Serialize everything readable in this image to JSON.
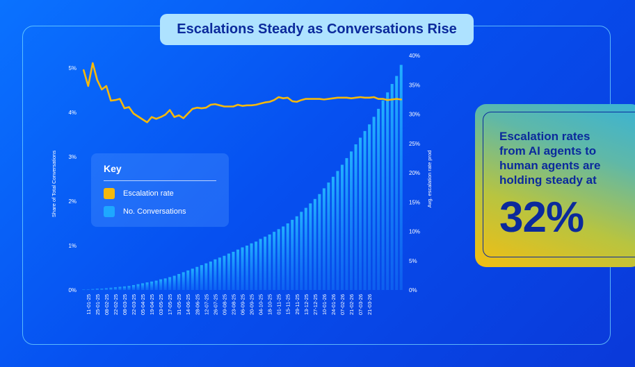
{
  "title": "Escalations Steady as Conversations Rise",
  "legend": {
    "title": "Key",
    "items": [
      {
        "label": "Escalation rate",
        "color": "#f5b90c"
      },
      {
        "label": "No. Conversations",
        "color": "#1ea8ff"
      }
    ]
  },
  "callout": {
    "text": "Escalation rates from AI agents to human agents are holding steady at",
    "value": "32%"
  },
  "chart_data": {
    "type": "bar",
    "x_tick_labels": [
      "11-01-25",
      "25-01-25",
      "08-02-25",
      "22-02-25",
      "08-03-25",
      "22-03-25",
      "05-04-25",
      "19-04-25",
      "03-05-25",
      "17-05-25",
      "31-05-25",
      "14-06-25",
      "28-06-25",
      "12-07-25",
      "26-07-25",
      "09-08-25",
      "23-08-25",
      "06-09-25",
      "20-09-25",
      "04-10-25",
      "18-10-25",
      "01-11-25",
      "15-11-25",
      "29-11-25",
      "13-12-25",
      "27-12-25",
      "10-01-26",
      "24-01-26",
      "07-02-26",
      "21-02-26",
      "07-03-26",
      "21-03-26"
    ],
    "ylabel": "Share of Total Conversations",
    "y_ticks": [
      "0%",
      "1%",
      "2%",
      "3%",
      "4%",
      "5%"
    ],
    "ylim": [
      0,
      5
    ],
    "y2label": "Avg. escalation rate prod",
    "y2_ticks": [
      "0%",
      "5%",
      "10%",
      "15%",
      "20%",
      "25%",
      "30%",
      "35%",
      "40%"
    ],
    "y2lim": [
      0,
      40
    ],
    "series": [
      {
        "name": "No. Conversations",
        "axis": "left",
        "type": "bar",
        "values": [
          0.01,
          0.01,
          0.02,
          0.03,
          0.03,
          0.04,
          0.05,
          0.06,
          0.07,
          0.08,
          0.09,
          0.11,
          0.13,
          0.15,
          0.17,
          0.19,
          0.21,
          0.24,
          0.26,
          0.29,
          0.32,
          0.36,
          0.4,
          0.44,
          0.48,
          0.52,
          0.56,
          0.6,
          0.64,
          0.69,
          0.73,
          0.77,
          0.82,
          0.86,
          0.91,
          0.96,
          1.0,
          1.05,
          1.09,
          1.15,
          1.2,
          1.25,
          1.31,
          1.37,
          1.43,
          1.5,
          1.58,
          1.66,
          1.76,
          1.85,
          1.95,
          2.05,
          2.16,
          2.29,
          2.42,
          2.55,
          2.68,
          2.82,
          2.97,
          3.12,
          3.28,
          3.43,
          3.58,
          3.73,
          3.9,
          4.08,
          4.27,
          4.45,
          4.64,
          4.82,
          5.07
        ]
      },
      {
        "name": "Escalation rate",
        "axis": "right",
        "type": "line",
        "values": [
          37.5,
          34.8,
          38.7,
          35.8,
          34.2,
          34.8,
          32.3,
          32.4,
          32.6,
          31.0,
          31.2,
          30.1,
          29.6,
          29.1,
          28.6,
          29.5,
          29.2,
          29.5,
          29.9,
          30.7,
          29.5,
          29.8,
          29.3,
          30.1,
          30.9,
          31.1,
          31.0,
          31.1,
          31.6,
          31.7,
          31.5,
          31.3,
          31.3,
          31.3,
          31.6,
          31.4,
          31.5,
          31.5,
          31.6,
          31.8,
          32.0,
          32.1,
          32.4,
          32.9,
          32.7,
          32.8,
          32.2,
          32.1,
          32.4,
          32.6,
          32.6,
          32.6,
          32.6,
          32.5,
          32.6,
          32.7,
          32.8,
          32.8,
          32.8,
          32.7,
          32.8,
          32.9,
          32.8,
          32.8,
          32.9,
          32.6,
          32.6,
          32.4,
          32.5,
          32.6,
          32.5
        ]
      }
    ],
    "grid": false,
    "legend_position": "left"
  }
}
